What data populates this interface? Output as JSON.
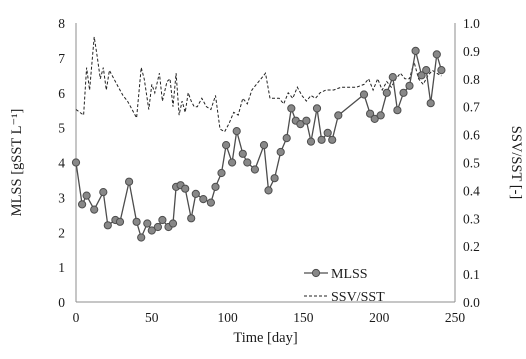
{
  "chart_data": {
    "type": "line",
    "xlabel": "Time [day]",
    "ylabel_left": "MLSS [gSST L⁻¹]",
    "ylabel_right": "SSV/SST [-]",
    "xlim": [
      0,
      250
    ],
    "ylim_left": [
      0,
      8
    ],
    "ylim_right": [
      0.0,
      1.0
    ],
    "x_ticks": [
      "0",
      "50",
      "100",
      "150",
      "200",
      "250"
    ],
    "y_left_ticks": [
      "0",
      "1",
      "2",
      "3",
      "4",
      "5",
      "6",
      "7",
      "8"
    ],
    "y_right_ticks": [
      "0.0",
      "0.1",
      "0.2",
      "0.3",
      "0.4",
      "0.5",
      "0.6",
      "0.7",
      "0.8",
      "0.9",
      "1.0"
    ],
    "grid": false,
    "legend_position": "bottom-right-inside",
    "series": [
      {
        "name": "MLSS",
        "axis": "left",
        "style": "solid-line-circle-markers",
        "color": "#4d4d4d",
        "marker_fill": "#888888",
        "x": [
          0,
          4,
          7,
          12,
          18,
          21,
          26,
          29,
          35,
          40,
          43,
          47,
          50,
          54,
          57,
          61,
          64,
          66,
          69,
          72,
          76,
          79,
          84,
          89,
          92,
          96,
          99,
          103,
          106,
          110,
          113,
          118,
          124,
          127,
          131,
          135,
          139,
          142,
          145,
          148,
          152,
          155,
          159,
          162,
          166,
          169,
          173,
          190,
          194,
          197,
          201,
          205,
          209,
          212,
          216,
          220,
          224,
          228,
          231,
          234,
          238,
          241
        ],
        "y": [
          4.0,
          2.8,
          3.05,
          2.65,
          3.15,
          2.2,
          2.35,
          2.3,
          3.45,
          2.3,
          1.85,
          2.25,
          2.05,
          2.15,
          2.35,
          2.15,
          2.25,
          3.3,
          3.35,
          3.25,
          2.4,
          3.1,
          2.95,
          2.85,
          3.3,
          3.7,
          4.5,
          4.0,
          4.9,
          4.25,
          4.0,
          3.8,
          4.5,
          3.2,
          3.55,
          4.3,
          4.7,
          5.55,
          5.2,
          5.1,
          5.2,
          4.6,
          5.55,
          4.65,
          4.85,
          4.65,
          5.35,
          5.95,
          5.4,
          5.25,
          5.35,
          6.0,
          6.45,
          5.5,
          6.0,
          6.2,
          7.2,
          6.5,
          6.65,
          5.7,
          7.1,
          6.65
        ]
      },
      {
        "name": "SSV/SST",
        "axis": "right",
        "style": "dashed-line",
        "color": "#222222",
        "x": [
          0,
          5,
          7,
          9,
          12,
          14,
          16,
          18,
          20,
          22,
          25,
          28,
          31,
          34,
          37,
          40,
          43,
          45,
          48,
          50,
          52,
          55,
          57,
          60,
          62,
          64,
          66,
          68,
          70,
          72,
          74,
          76,
          78,
          80,
          83,
          86,
          89,
          92,
          95,
          98,
          101,
          104,
          107,
          110,
          113,
          116,
          119,
          122,
          125,
          128,
          131,
          134,
          137,
          140,
          143,
          146,
          149,
          152,
          155,
          158,
          161,
          165,
          170,
          175,
          180,
          185,
          190,
          193,
          196,
          199,
          202,
          205,
          208,
          211,
          214,
          217,
          220,
          223,
          226,
          229,
          232,
          235,
          238,
          241
        ],
        "y": [
          0.69,
          0.67,
          0.84,
          0.76,
          0.95,
          0.88,
          0.8,
          0.84,
          0.76,
          0.83,
          0.8,
          0.77,
          0.74,
          0.72,
          0.69,
          0.66,
          0.84,
          0.8,
          0.69,
          0.78,
          0.75,
          0.82,
          0.72,
          0.79,
          0.8,
          0.7,
          0.82,
          0.67,
          0.72,
          0.68,
          0.75,
          0.72,
          0.7,
          0.7,
          0.73,
          0.7,
          0.69,
          0.74,
          0.62,
          0.61,
          0.64,
          0.68,
          0.67,
          0.73,
          0.71,
          0.76,
          0.78,
          0.8,
          0.82,
          0.73,
          0.73,
          0.73,
          0.71,
          0.75,
          0.73,
          0.77,
          0.74,
          0.72,
          0.74,
          0.73,
          0.75,
          0.76,
          0.76,
          0.77,
          0.77,
          0.77,
          0.78,
          0.8,
          0.76,
          0.8,
          0.76,
          0.79,
          0.77,
          0.8,
          0.82,
          0.8,
          0.8,
          0.86,
          0.8,
          0.78,
          0.81,
          0.83,
          0.82,
          0.81
        ]
      }
    ]
  }
}
